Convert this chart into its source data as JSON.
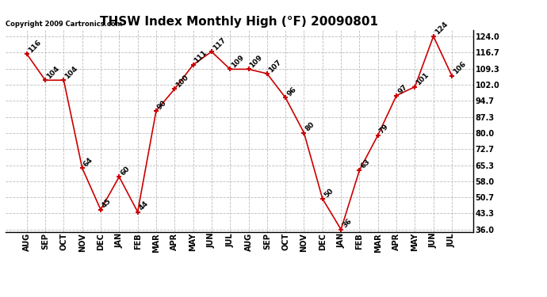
{
  "title": "THSW Index Monthly High (°F) 20090801",
  "copyright": "Copyright 2009 Cartronics.com",
  "months": [
    "AUG",
    "SEP",
    "OCT",
    "NOV",
    "DEC",
    "JAN",
    "FEB",
    "MAR",
    "APR",
    "MAY",
    "JUN",
    "JUL",
    "AUG",
    "SEP",
    "OCT",
    "NOV",
    "DEC",
    "JAN",
    "FEB",
    "MAR",
    "APR",
    "MAY",
    "JUN",
    "JUL"
  ],
  "values": [
    116,
    104,
    104,
    64,
    45,
    60,
    44,
    90,
    100,
    111,
    117,
    109,
    109,
    107,
    96,
    80,
    50,
    36,
    63,
    79,
    97,
    101,
    124,
    106
  ],
  "line_color": "#cc0000",
  "marker_color": "#cc0000",
  "bg_color": "#ffffff",
  "grid_color": "#bbbbbb",
  "ylim_min": 36.0,
  "ylim_max": 124.0,
  "yticks": [
    36.0,
    43.3,
    50.7,
    58.0,
    65.3,
    72.7,
    80.0,
    87.3,
    94.7,
    102.0,
    109.3,
    116.7,
    124.0
  ],
  "title_fontsize": 11,
  "label_fontsize": 7,
  "annot_fontsize": 6.5,
  "copyright_fontsize": 6
}
